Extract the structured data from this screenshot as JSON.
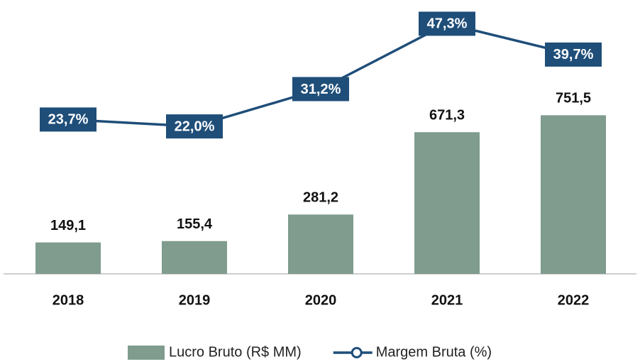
{
  "chart_data": {
    "type": "combo",
    "categories": [
      "2018",
      "2019",
      "2020",
      "2021",
      "2022"
    ],
    "series": [
      {
        "name": "Lucro Bruto (R$ MM)",
        "type": "bar",
        "color": "#7f9c8e",
        "values": [
          149.1,
          155.4,
          281.2,
          671.3,
          751.5
        ],
        "value_labels": [
          "149,1",
          "155,4",
          "281,2",
          "671,3",
          "751,5"
        ]
      },
      {
        "name": "Margem Bruta (%)",
        "type": "line",
        "axis": "y2",
        "color": "#1f4e79",
        "values": [
          23.7,
          22.0,
          31.2,
          47.3,
          39.7
        ],
        "value_labels": [
          "23,7%",
          "22,0%",
          "31,2%",
          "47,3%",
          "39,7%"
        ]
      }
    ],
    "ylim": [
      0,
      800
    ],
    "y2lim": [
      0,
      50
    ],
    "legend": "bottom"
  }
}
